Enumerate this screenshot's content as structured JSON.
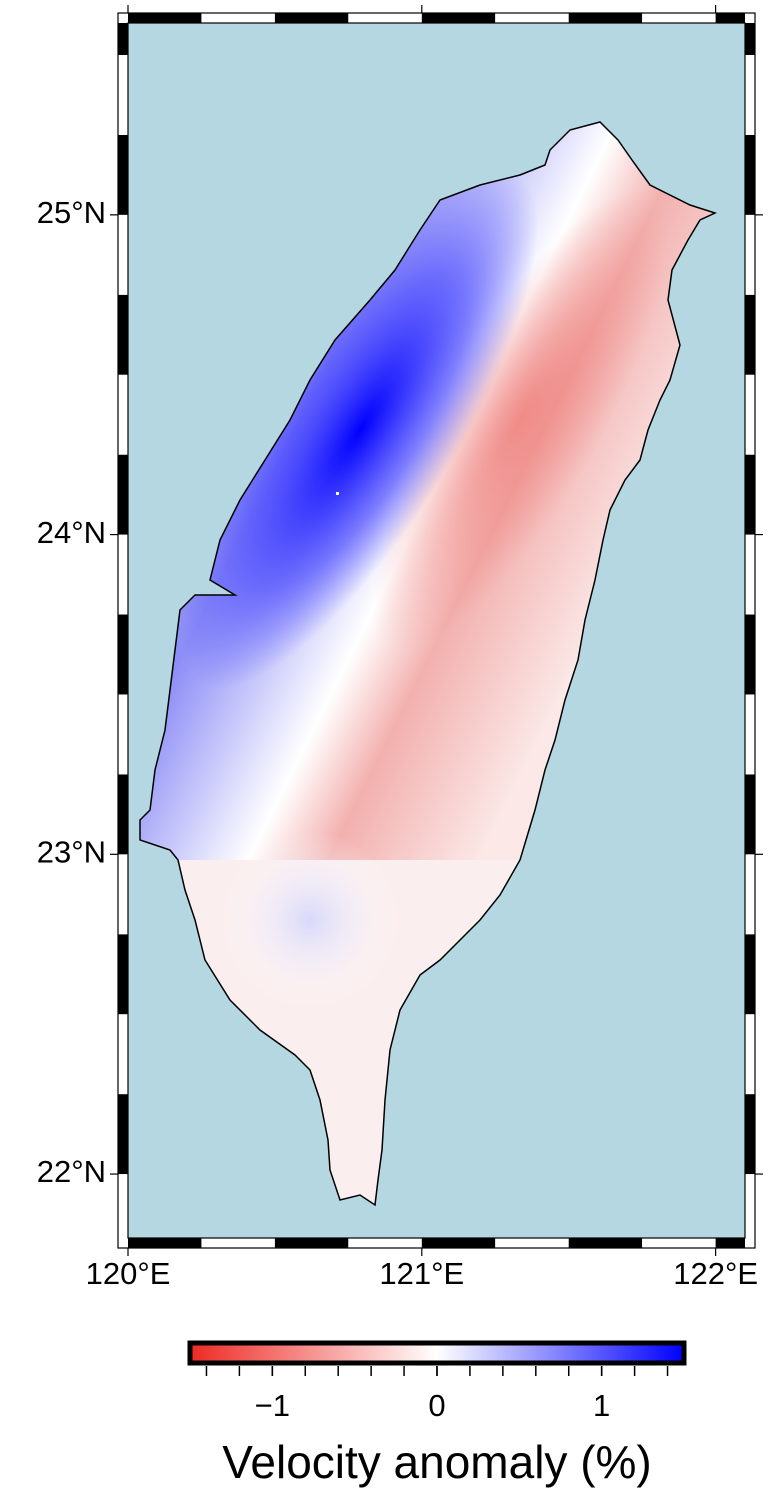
{
  "map": {
    "xlim": [
      120,
      122.1
    ],
    "ylim": [
      21.8,
      25.6
    ],
    "xticks": [
      {
        "value": 120,
        "label": "120°E"
      },
      {
        "value": 121,
        "label": "121°E"
      },
      {
        "value": 122,
        "label": "122°E"
      }
    ],
    "yticks": [
      {
        "value": 22,
        "label": "22°N"
      },
      {
        "value": 23,
        "label": "23°N"
      },
      {
        "value": 24,
        "label": "24°N"
      },
      {
        "value": 25,
        "label": "25°N"
      }
    ],
    "frame_interval": 0.25,
    "ocean_color": "#b4d7e2"
  },
  "colorbar": {
    "label": "Velocity anomaly (%)",
    "lim": [
      -1.5,
      1.5
    ],
    "ticks": [
      {
        "value": -1,
        "label": "−1"
      },
      0,
      1
    ],
    "minor_tick_step": 0.2,
    "colors": [
      "#ee2a24",
      "#ffffff",
      "#0000ff"
    ]
  }
}
